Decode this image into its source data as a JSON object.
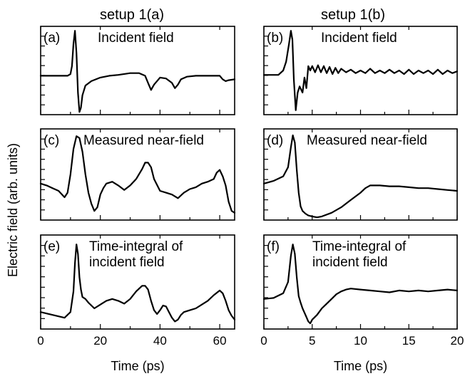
{
  "figure": {
    "column_titles": [
      "setup 1(a)",
      "setup 1(b)"
    ],
    "ylabel": "Electric field (arb. units)"
  },
  "chart_data": [
    {
      "id": "a",
      "type": "line",
      "panel_label": "(a)",
      "title": "Incident field",
      "xlim": [
        0,
        65
      ],
      "ylim": [
        0,
        1
      ],
      "xticks": [
        0,
        20,
        40,
        60
      ],
      "show_xticklabels": false,
      "x": [
        0,
        5,
        9,
        10,
        10.5,
        11,
        11.5,
        12,
        12.5,
        13,
        13.5,
        14,
        15,
        17,
        20,
        23,
        26,
        30,
        33,
        35,
        36,
        37,
        38,
        40,
        42,
        44,
        45,
        46,
        47,
        49,
        52,
        56,
        60,
        61,
        62,
        63,
        65
      ],
      "y": [
        0.44,
        0.44,
        0.44,
        0.46,
        0.55,
        0.8,
        0.95,
        0.7,
        0.25,
        0.03,
        0.08,
        0.22,
        0.33,
        0.38,
        0.42,
        0.44,
        0.45,
        0.47,
        0.47,
        0.44,
        0.36,
        0.28,
        0.34,
        0.42,
        0.41,
        0.36,
        0.3,
        0.34,
        0.4,
        0.43,
        0.44,
        0.44,
        0.44,
        0.4,
        0.38,
        0.39,
        0.4
      ]
    },
    {
      "id": "b",
      "type": "line",
      "panel_label": "(b)",
      "title": "Incident field",
      "xlim": [
        0,
        20
      ],
      "ylim": [
        0,
        1
      ],
      "xticks": [
        0,
        5,
        10,
        15,
        20
      ],
      "show_xticklabels": false,
      "x": [
        0,
        1.5,
        2,
        2.3,
        2.6,
        2.8,
        2.95,
        3.1,
        3.3,
        3.5,
        3.7,
        4.0,
        4.2,
        4.4,
        4.6,
        4.8,
        5.0,
        5.3,
        5.6,
        5.9,
        6.2,
        6.5,
        6.8,
        7.1,
        7.4,
        7.7,
        8.0,
        8.5,
        9.0,
        9.5,
        10,
        10.5,
        11,
        11.5,
        12,
        12.5,
        13,
        13.5,
        14,
        14.5,
        15,
        15.5,
        16,
        16.5,
        17,
        17.5,
        18,
        18.5,
        19,
        19.5,
        20
      ],
      "y": [
        0.45,
        0.45,
        0.5,
        0.6,
        0.8,
        0.95,
        0.85,
        0.4,
        0.05,
        0.25,
        0.32,
        0.25,
        0.42,
        0.3,
        0.55,
        0.5,
        0.55,
        0.48,
        0.56,
        0.48,
        0.55,
        0.47,
        0.54,
        0.46,
        0.53,
        0.47,
        0.52,
        0.48,
        0.51,
        0.47,
        0.5,
        0.47,
        0.52,
        0.47,
        0.5,
        0.47,
        0.51,
        0.47,
        0.5,
        0.46,
        0.51,
        0.46,
        0.5,
        0.47,
        0.5,
        0.46,
        0.51,
        0.46,
        0.5,
        0.47,
        0.49
      ]
    },
    {
      "id": "c",
      "type": "line",
      "panel_label": "(c)",
      "title": "Measured near-field",
      "xlim": [
        0,
        65
      ],
      "ylim": [
        0,
        1
      ],
      "xticks": [
        0,
        20,
        40,
        60
      ],
      "show_xticklabels": false,
      "x": [
        0,
        2,
        4,
        6,
        8,
        9,
        10,
        11,
        12,
        13,
        14,
        15,
        16,
        17,
        18,
        19,
        20,
        21,
        22,
        24,
        26,
        28,
        30,
        32,
        34,
        35,
        36,
        37,
        38,
        40,
        42,
        44,
        46,
        48,
        50,
        52,
        54,
        56,
        58,
        59,
        60,
        61,
        62,
        63,
        64,
        65
      ],
      "y": [
        0.4,
        0.38,
        0.35,
        0.32,
        0.25,
        0.3,
        0.5,
        0.78,
        0.92,
        0.9,
        0.75,
        0.5,
        0.3,
        0.18,
        0.1,
        0.14,
        0.28,
        0.35,
        0.4,
        0.42,
        0.38,
        0.33,
        0.38,
        0.45,
        0.56,
        0.63,
        0.63,
        0.58,
        0.45,
        0.32,
        0.3,
        0.28,
        0.24,
        0.3,
        0.34,
        0.36,
        0.4,
        0.42,
        0.45,
        0.52,
        0.55,
        0.48,
        0.38,
        0.2,
        0.1,
        0.08
      ]
    },
    {
      "id": "d",
      "type": "line",
      "panel_label": "(d)",
      "title": "Measured near-field",
      "xlim": [
        0,
        20
      ],
      "ylim": [
        0,
        1
      ],
      "xticks": [
        0,
        5,
        10,
        15,
        20
      ],
      "show_xticklabels": false,
      "x": [
        0,
        1,
        2,
        2.5,
        2.8,
        3.0,
        3.2,
        3.4,
        3.6,
        3.8,
        4.0,
        4.3,
        4.6,
        5,
        5.5,
        6,
        7,
        8,
        9,
        10,
        10.5,
        11,
        12,
        13,
        14,
        15,
        16,
        17,
        18,
        19,
        20
      ],
      "y": [
        0.4,
        0.43,
        0.48,
        0.58,
        0.8,
        0.93,
        0.85,
        0.55,
        0.3,
        0.15,
        0.1,
        0.07,
        0.05,
        0.04,
        0.03,
        0.04,
        0.08,
        0.14,
        0.22,
        0.3,
        0.35,
        0.38,
        0.38,
        0.37,
        0.37,
        0.36,
        0.35,
        0.35,
        0.34,
        0.33,
        0.32
      ]
    },
    {
      "id": "e",
      "type": "line",
      "panel_label": "(e)",
      "title": "Time-integral of incident field",
      "xlim": [
        0,
        65
      ],
      "ylim": [
        0,
        1
      ],
      "xticks": [
        0,
        20,
        40,
        60
      ],
      "show_xticklabels": true,
      "xlabel": "Time (ps)",
      "x": [
        0,
        4,
        8,
        10,
        11,
        11.5,
        12,
        12.5,
        13,
        13.5,
        14,
        15,
        16,
        18,
        20,
        22,
        24,
        26,
        28,
        30,
        32,
        34,
        35,
        36,
        37,
        38,
        39,
        40,
        41,
        42,
        43,
        44,
        45,
        46,
        47,
        48,
        50,
        52,
        54,
        56,
        58,
        60,
        61,
        62,
        63,
        64,
        65
      ],
      "y": [
        0.18,
        0.15,
        0.12,
        0.18,
        0.4,
        0.7,
        0.9,
        0.8,
        0.55,
        0.42,
        0.34,
        0.32,
        0.28,
        0.22,
        0.26,
        0.3,
        0.32,
        0.3,
        0.27,
        0.32,
        0.4,
        0.46,
        0.46,
        0.42,
        0.3,
        0.2,
        0.16,
        0.2,
        0.25,
        0.24,
        0.18,
        0.12,
        0.08,
        0.1,
        0.15,
        0.18,
        0.2,
        0.22,
        0.26,
        0.3,
        0.36,
        0.41,
        0.38,
        0.3,
        0.2,
        0.14,
        0.1
      ]
    },
    {
      "id": "f",
      "type": "line",
      "panel_label": "(f)",
      "title": "Time-integral of incident field",
      "xlim": [
        0,
        20
      ],
      "ylim": [
        0,
        1
      ],
      "xticks": [
        0,
        5,
        10,
        15,
        20
      ],
      "show_xticklabels": true,
      "xlabel": "Time (ps)",
      "x": [
        0,
        1,
        2,
        2.5,
        2.8,
        3.0,
        3.2,
        3.4,
        3.6,
        3.8,
        4.0,
        4.3,
        4.6,
        4.8,
        5.0,
        5.5,
        6,
        6.5,
        7,
        7.5,
        8,
        8.5,
        9,
        10,
        11,
        12,
        13,
        14,
        15,
        16,
        17,
        18,
        19,
        20
      ],
      "y": [
        0.32,
        0.33,
        0.38,
        0.5,
        0.78,
        0.9,
        0.8,
        0.55,
        0.35,
        0.28,
        0.22,
        0.15,
        0.08,
        0.06,
        0.1,
        0.15,
        0.22,
        0.27,
        0.32,
        0.37,
        0.4,
        0.42,
        0.43,
        0.42,
        0.41,
        0.4,
        0.39,
        0.41,
        0.4,
        0.41,
        0.4,
        0.41,
        0.42,
        0.41
      ]
    }
  ]
}
